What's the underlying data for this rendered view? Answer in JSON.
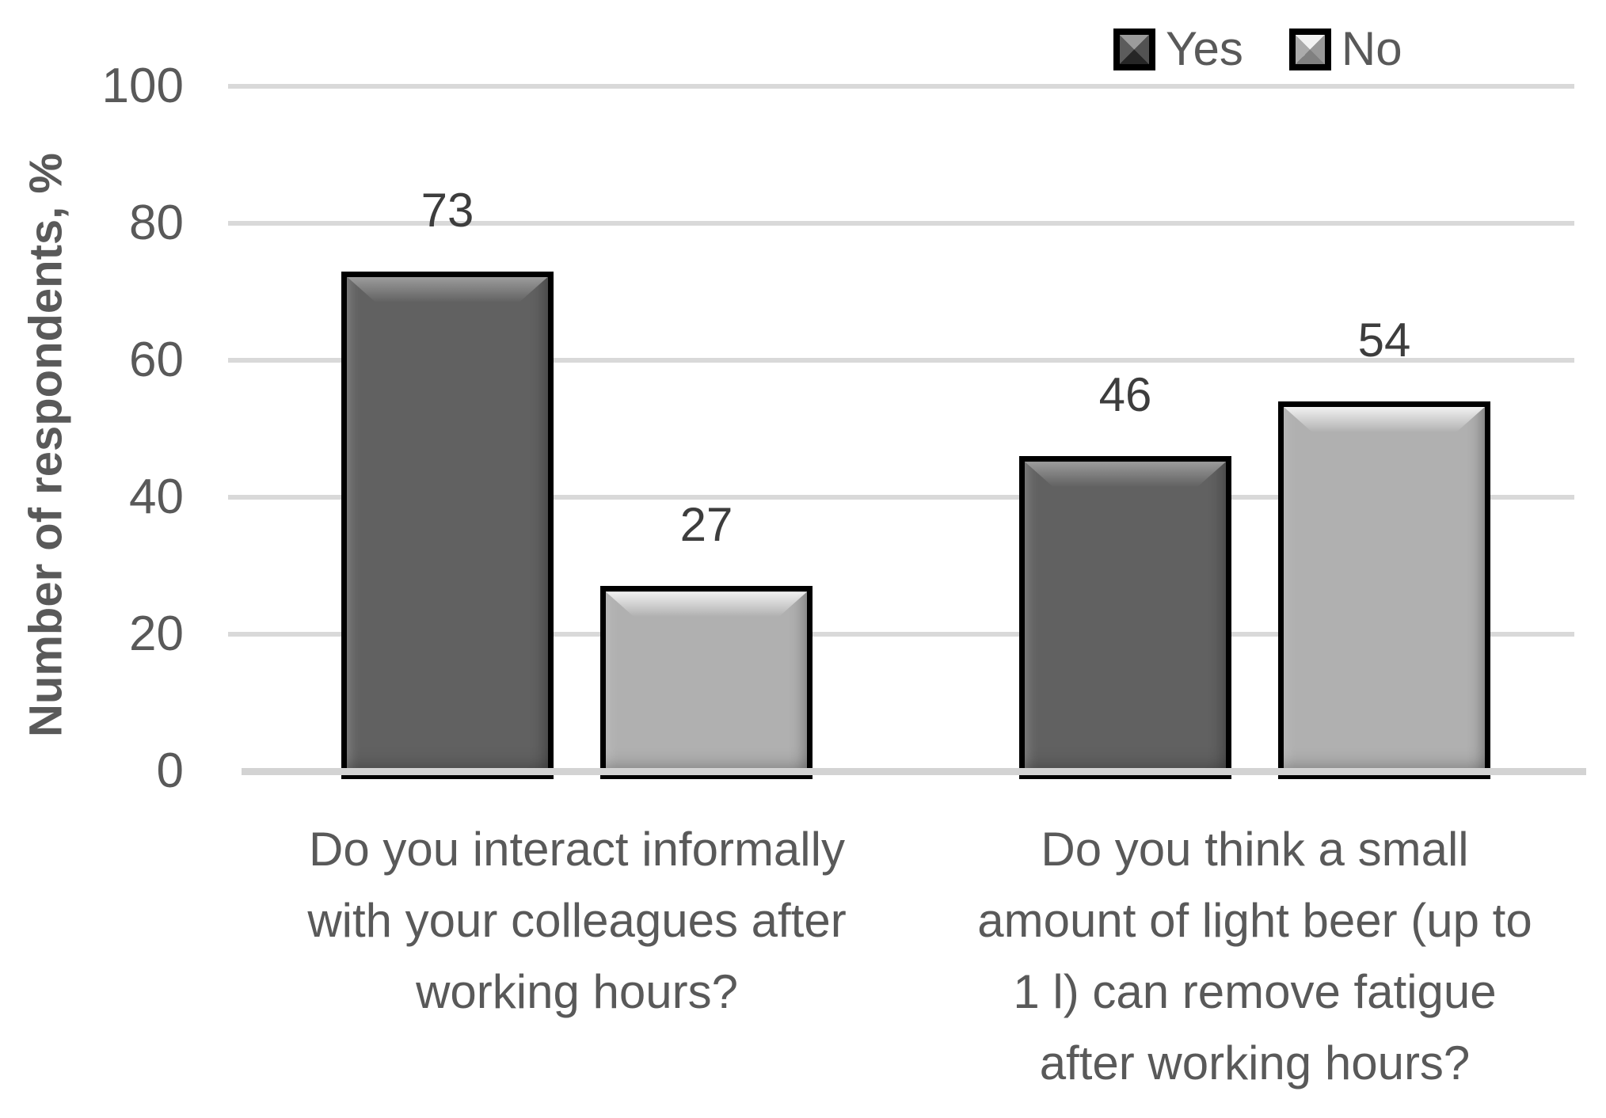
{
  "chart_data": {
    "type": "bar",
    "title": "",
    "ylabel": "Number of respondents, %",
    "ylim": [
      0,
      100
    ],
    "yticks": [
      0,
      20,
      40,
      60,
      80,
      100
    ],
    "grid": "horizontal",
    "legend_position": "top-right",
    "value_labels": true,
    "categories": [
      {
        "lines": [
          "Do you interact informally",
          "with your colleagues after",
          "working hours?"
        ]
      },
      {
        "lines": [
          "Do you think a small",
          "amount of light beer (up to",
          "1 l) can remove fatigue",
          "after working hours?"
        ]
      }
    ],
    "series": [
      {
        "name": "Yes",
        "values": [
          73,
          46
        ],
        "fill": "#616161",
        "bevel": "#9c9c9c",
        "border": "#000000",
        "marker": {
          "top": "#9c9c9c",
          "right": "#525252",
          "bottom": "#262626",
          "left": "#5c5c5c"
        }
      },
      {
        "name": "No",
        "values": [
          27,
          54
        ],
        "fill": "#b0b0b0",
        "bevel": "#f2f2f2",
        "border": "#000000",
        "marker": {
          "top": "#f2f2f2",
          "right": "#999999",
          "bottom": "#808080",
          "left": "#ababab"
        }
      }
    ]
  },
  "colors": {
    "text": "#595959",
    "value_label": "#3d3d3d",
    "gridline": "#d9d9d9",
    "baseline": "#d3d3d3",
    "background": "#ffffff"
  }
}
